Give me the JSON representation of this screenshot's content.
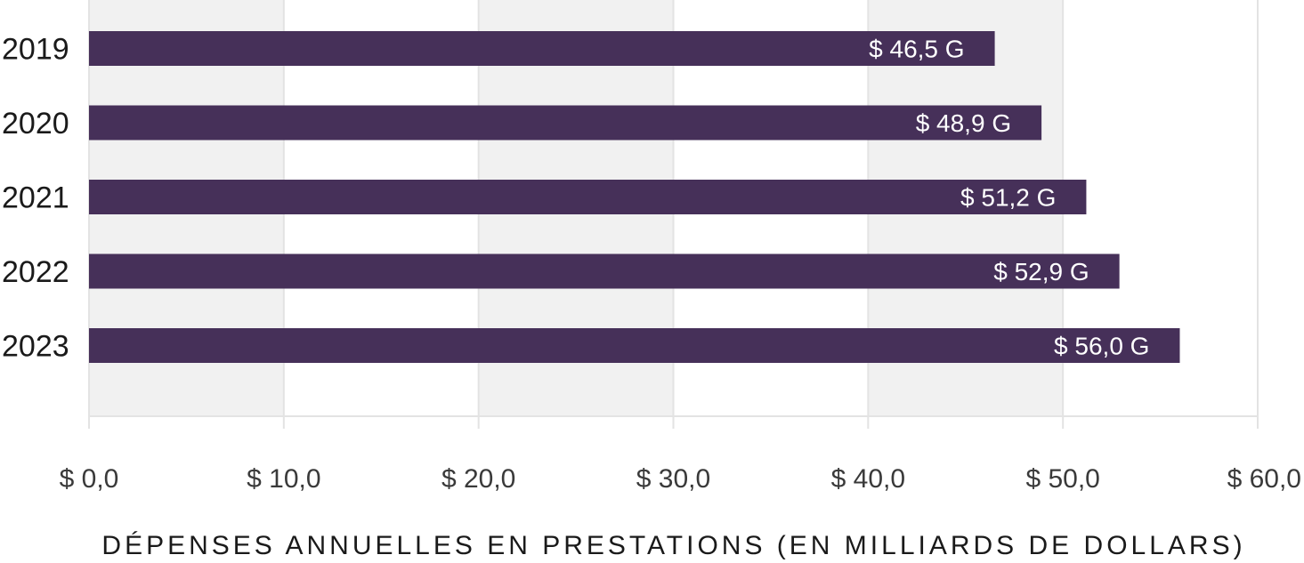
{
  "chart_data": {
    "type": "bar",
    "orientation": "horizontal",
    "categories": [
      "2019",
      "2020",
      "2021",
      "2022",
      "2023"
    ],
    "values": [
      46.5,
      48.9,
      51.2,
      52.9,
      56.0
    ],
    "value_labels": [
      "$ 46,5 G",
      "$ 48,9 G",
      "$ 51,2 G",
      "$ 52,9 G",
      "$ 56,0 G"
    ],
    "x_ticks": [
      0,
      10,
      20,
      30,
      40,
      50,
      60
    ],
    "x_tick_labels": [
      "$ 0,0",
      "$ 10,0",
      "$ 20,0",
      "$ 30,0",
      "$ 40,0",
      "$ 50,0",
      "$ 60,0"
    ],
    "xlim": [
      0,
      60
    ],
    "xlabel": "DÉPENSES ANNUELLES EN PRESTATIONS (EN MILLIARDS DE DOLLARS)",
    "ylabel": "",
    "title": "",
    "bar_color": "#463059",
    "band_color": "#f1f1f1",
    "gridline_color": "#e3e3e3"
  }
}
